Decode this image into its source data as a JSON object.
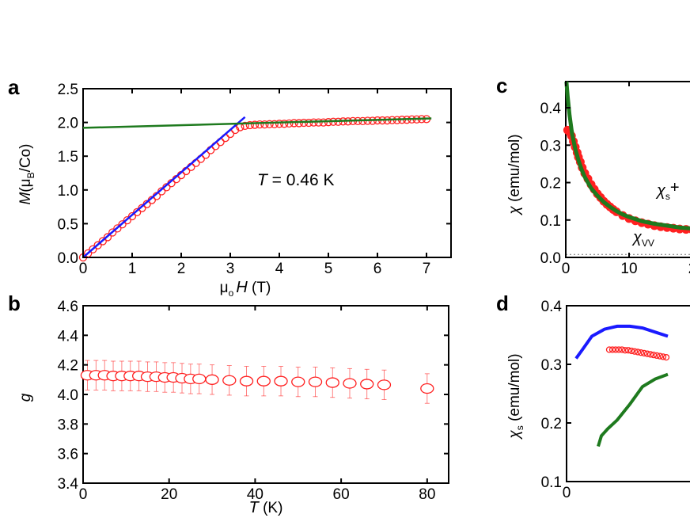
{
  "chart_data": [
    {
      "panel": "a",
      "type": "scatter",
      "ylabel_main": "M",
      "ylabel_rest": "(μ",
      "ylabel_sub": "B",
      "ylabel_end": "/Co)",
      "xlabel_main": "μ",
      "xlabel_sub": "o",
      "xlabel_var": "H",
      "xlabel_unit": " (T)",
      "annotation_var": "T",
      "annotation_rest": " = 0.46 K",
      "xlim": [
        0,
        7.5
      ],
      "ylim": [
        0,
        2.5
      ],
      "x_ticks": [
        "0",
        "1",
        "2",
        "3",
        "4",
        "5",
        "6",
        "7"
      ],
      "y_ticks": [
        "0.0",
        "0.5",
        "1.0",
        "1.5",
        "2.0",
        "2.5"
      ],
      "grid": false,
      "series": [
        {
          "kind": "markers",
          "marker": "open-circle",
          "color": "#ff2020",
          "x": [
            0,
            0.1,
            0.2,
            0.3,
            0.4,
            0.5,
            0.6,
            0.7,
            0.8,
            0.9,
            1.0,
            1.1,
            1.2,
            1.3,
            1.4,
            1.5,
            1.6,
            1.7,
            1.8,
            1.9,
            2.0,
            2.1,
            2.2,
            2.3,
            2.4,
            2.5,
            2.6,
            2.7,
            2.8,
            2.9,
            3.0,
            3.1,
            3.2,
            3.3,
            3.4,
            3.5,
            3.6,
            3.7,
            3.8,
            3.9,
            4.0,
            4.1,
            4.2,
            4.3,
            4.4,
            4.5,
            4.6,
            4.7,
            4.8,
            4.9,
            5.0,
            5.1,
            5.2,
            5.3,
            5.4,
            5.5,
            5.6,
            5.7,
            5.8,
            5.9,
            6.0,
            6.1,
            6.2,
            6.3,
            6.4,
            6.5,
            6.6,
            6.7,
            6.8,
            6.9,
            7.0
          ],
          "y": [
            0.0,
            0.06,
            0.12,
            0.18,
            0.24,
            0.3,
            0.37,
            0.43,
            0.49,
            0.55,
            0.61,
            0.67,
            0.73,
            0.79,
            0.85,
            0.91,
            0.98,
            1.04,
            1.1,
            1.16,
            1.22,
            1.28,
            1.34,
            1.4,
            1.46,
            1.52,
            1.59,
            1.65,
            1.71,
            1.77,
            1.83,
            1.89,
            1.93,
            1.95,
            1.96,
            1.965,
            1.97,
            1.97,
            1.975,
            1.975,
            1.98,
            1.98,
            1.985,
            1.99,
            1.99,
            1.995,
            1.995,
            2.0,
            2.0,
            2.0,
            2.005,
            2.01,
            2.01,
            2.015,
            2.015,
            2.02,
            2.02,
            2.02,
            2.025,
            2.025,
            2.03,
            2.03,
            2.03,
            2.035,
            2.035,
            2.04,
            2.04,
            2.045,
            2.045,
            2.05,
            2.05
          ]
        },
        {
          "kind": "line",
          "color": "#1a1aff",
          "x": [
            0,
            3.3
          ],
          "y": [
            0.0,
            2.08
          ]
        },
        {
          "kind": "line",
          "color": "#1e7a1e",
          "x": [
            0,
            7.1
          ],
          "y": [
            1.92,
            2.06
          ]
        }
      ]
    },
    {
      "panel": "b",
      "type": "scatter",
      "ylabel": "g",
      "xlabel_var": "T",
      "xlabel_unit": " (K)",
      "xlim": [
        0,
        85
      ],
      "ylim": [
        3.4,
        4.6
      ],
      "x_ticks": [
        "0",
        "20",
        "40",
        "60",
        "80"
      ],
      "y_ticks": [
        "3.4",
        "3.6",
        "3.8",
        "4.0",
        "4.2",
        "4.4",
        "4.6"
      ],
      "grid": false,
      "series": [
        {
          "kind": "markers_err",
          "marker": "open-circle",
          "color": "#ff2020",
          "x": [
            1,
            3,
            5,
            7,
            9,
            11,
            13,
            15,
            17,
            19,
            21,
            23,
            25,
            27,
            30,
            34,
            38,
            42,
            46,
            50,
            54,
            58,
            62,
            66,
            70,
            80
          ],
          "y": [
            4.13,
            4.13,
            4.13,
            4.125,
            4.125,
            4.125,
            4.125,
            4.12,
            4.12,
            4.115,
            4.115,
            4.11,
            4.105,
            4.105,
            4.1,
            4.095,
            4.09,
            4.09,
            4.09,
            4.085,
            4.085,
            4.08,
            4.075,
            4.07,
            4.065,
            4.04
          ],
          "err": [
            0.1,
            0.1,
            0.1,
            0.1,
            0.1,
            0.1,
            0.1,
            0.1,
            0.1,
            0.1,
            0.1,
            0.1,
            0.1,
            0.1,
            0.1,
            0.1,
            0.1,
            0.1,
            0.1,
            0.1,
            0.1,
            0.1,
            0.1,
            0.1,
            0.1,
            0.1
          ]
        }
      ]
    },
    {
      "panel": "c",
      "type": "line",
      "ylabel_main": "χ",
      "ylabel_rest": " (emu/mol)",
      "label_sum": "χ",
      "label_sum_sub": "s",
      "label_sum_end": "+",
      "label_vv": "χ",
      "label_vv_sub": "VV",
      "xlim": [
        0,
        25
      ],
      "ylim": [
        0,
        0.47
      ],
      "x_ticks": [
        "0",
        "10",
        "2"
      ],
      "y_ticks": [
        "0.0",
        "0.1",
        "0.2",
        "0.3",
        "0.4"
      ],
      "grid": false,
      "series": [
        {
          "kind": "markers_filled",
          "color": "#ff2020",
          "x": [
            0.3,
            0.6,
            0.9,
            1.2,
            1.5,
            1.8,
            2.0,
            2.3,
            2.6,
            3.0,
            3.5,
            4.0,
            4.5,
            5.0,
            5.5,
            6.0,
            6.5,
            7.0,
            7.5,
            8.0,
            9,
            10,
            11,
            12,
            13,
            14,
            15,
            16,
            17,
            18,
            19,
            20,
            21,
            22
          ],
          "y": [
            0.34,
            0.335,
            0.325,
            0.31,
            0.295,
            0.28,
            0.268,
            0.255,
            0.24,
            0.225,
            0.21,
            0.195,
            0.182,
            0.17,
            0.16,
            0.15,
            0.142,
            0.135,
            0.128,
            0.122,
            0.112,
            0.104,
            0.098,
            0.093,
            0.089,
            0.085,
            0.082,
            0.08,
            0.078,
            0.076,
            0.075,
            0.074,
            0.073,
            0.072
          ]
        },
        {
          "kind": "line",
          "color": "#1e7a1e",
          "x": [
            0.1,
            0.3,
            0.6,
            1.0,
            1.5,
            2.0,
            2.5,
            3,
            4,
            5,
            6,
            7,
            8,
            9,
            10,
            12,
            14,
            16,
            18,
            20,
            22,
            25
          ],
          "y": [
            0.47,
            0.43,
            0.38,
            0.33,
            0.29,
            0.26,
            0.235,
            0.215,
            0.185,
            0.165,
            0.148,
            0.135,
            0.124,
            0.115,
            0.108,
            0.097,
            0.09,
            0.085,
            0.08,
            0.077,
            0.075,
            0.072
          ]
        },
        {
          "kind": "dotted",
          "color": "#777777",
          "x": [
            0,
            25
          ],
          "y": [
            0.008,
            0.008
          ]
        }
      ]
    },
    {
      "panel": "d",
      "type": "line",
      "ylabel_main": "χ",
      "ylabel_sub": "s",
      "ylabel_rest": " (emu/mol)",
      "xlim": [
        0,
        5
      ],
      "ylim": [
        0.1,
        0.4
      ],
      "x_ticks": [
        "0"
      ],
      "y_ticks": [
        "0.1",
        "0.2",
        "0.3",
        "0.4"
      ],
      "grid": false,
      "series": [
        {
          "kind": "line",
          "color": "#1a1aff",
          "x": [
            0.3,
            0.5,
            0.8,
            1.2,
            1.6,
            2.0,
            2.4,
            2.8,
            3.2
          ],
          "y": [
            0.31,
            0.325,
            0.348,
            0.36,
            0.365,
            0.365,
            0.362,
            0.355,
            0.348
          ]
        },
        {
          "kind": "markers",
          "marker": "open-circle",
          "color": "#ff2020",
          "x": [
            1.35,
            1.45,
            1.55,
            1.65,
            1.75,
            1.85,
            1.95,
            2.05,
            2.15,
            2.25,
            2.35,
            2.45,
            2.55,
            2.65,
            2.75,
            2.85,
            2.95,
            3.05,
            3.15
          ],
          "y": [
            0.325,
            0.325,
            0.325,
            0.325,
            0.325,
            0.324,
            0.324,
            0.323,
            0.322,
            0.321,
            0.32,
            0.319,
            0.318,
            0.317,
            0.316,
            0.315,
            0.314,
            0.313,
            0.312
          ]
        },
        {
          "kind": "line",
          "color": "#1e7a1e",
          "x": [
            1.0,
            1.1,
            1.3,
            1.6,
            2.0,
            2.4,
            2.8,
            3.2
          ],
          "y": [
            0.16,
            0.178,
            0.19,
            0.205,
            0.232,
            0.262,
            0.275,
            0.283
          ]
        }
      ]
    }
  ]
}
